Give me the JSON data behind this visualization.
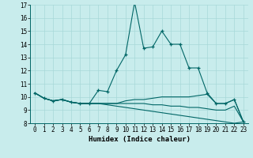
{
  "xlabel": "Humidex (Indice chaleur)",
  "xlim": [
    -0.5,
    23.5
  ],
  "ylim": [
    8,
    17
  ],
  "yticks": [
    8,
    9,
    10,
    11,
    12,
    13,
    14,
    15,
    16,
    17
  ],
  "xticks": [
    0,
    1,
    2,
    3,
    4,
    5,
    6,
    7,
    8,
    9,
    10,
    11,
    12,
    13,
    14,
    15,
    16,
    17,
    18,
    19,
    20,
    21,
    22,
    23
  ],
  "bg_color": "#c8ecec",
  "line_color": "#006666",
  "line1_x": [
    0,
    1,
    2,
    3,
    4,
    5,
    6,
    7,
    8,
    9,
    10,
    11,
    12,
    13,
    14,
    15,
    16,
    17,
    18,
    19,
    20,
    21,
    22,
    23
  ],
  "line1_y": [
    10.3,
    9.9,
    9.7,
    9.8,
    9.6,
    9.5,
    9.5,
    10.5,
    10.4,
    12.0,
    13.2,
    17.2,
    13.7,
    13.8,
    15.0,
    14.0,
    14.0,
    12.2,
    12.2,
    10.3,
    9.5,
    9.5,
    9.8,
    8.1
  ],
  "line2_x": [
    0,
    1,
    2,
    3,
    4,
    5,
    6,
    7,
    8,
    9,
    10,
    11,
    12,
    13,
    14,
    15,
    16,
    17,
    18,
    19,
    20,
    21,
    22,
    23
  ],
  "line2_y": [
    10.3,
    9.9,
    9.7,
    9.8,
    9.6,
    9.5,
    9.5,
    9.5,
    9.5,
    9.5,
    9.7,
    9.8,
    9.8,
    9.9,
    10.0,
    10.0,
    10.0,
    10.0,
    10.1,
    10.2,
    9.5,
    9.5,
    9.8,
    8.1
  ],
  "line3_x": [
    0,
    1,
    2,
    3,
    4,
    5,
    6,
    7,
    8,
    9,
    10,
    11,
    12,
    13,
    14,
    15,
    16,
    17,
    18,
    19,
    20,
    21,
    22,
    23
  ],
  "line3_y": [
    10.3,
    9.9,
    9.7,
    9.8,
    9.6,
    9.5,
    9.5,
    9.5,
    9.5,
    9.5,
    9.5,
    9.5,
    9.5,
    9.4,
    9.4,
    9.3,
    9.3,
    9.2,
    9.2,
    9.1,
    9.0,
    9.0,
    9.3,
    8.1
  ],
  "line4_x": [
    0,
    1,
    2,
    3,
    4,
    5,
    6,
    7,
    8,
    9,
    10,
    11,
    12,
    13,
    14,
    15,
    16,
    17,
    18,
    19,
    20,
    21,
    22,
    23
  ],
  "line4_y": [
    10.3,
    9.9,
    9.7,
    9.8,
    9.6,
    9.5,
    9.5,
    9.5,
    9.4,
    9.3,
    9.2,
    9.1,
    9.0,
    8.9,
    8.8,
    8.7,
    8.6,
    8.5,
    8.4,
    8.3,
    8.2,
    8.1,
    8.0,
    8.1
  ],
  "grid_color": "#a8d8d8",
  "tick_fontsize": 5.5,
  "xlabel_fontsize": 6.5
}
